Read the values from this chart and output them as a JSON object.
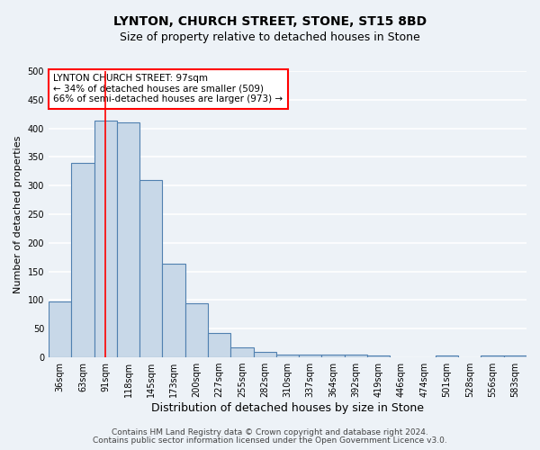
{
  "title": "LYNTON, CHURCH STREET, STONE, ST15 8BD",
  "subtitle": "Size of property relative to detached houses in Stone",
  "xlabel": "Distribution of detached houses by size in Stone",
  "ylabel": "Number of detached properties",
  "categories": [
    "36sqm",
    "63sqm",
    "91sqm",
    "118sqm",
    "145sqm",
    "173sqm",
    "200sqm",
    "227sqm",
    "255sqm",
    "282sqm",
    "310sqm",
    "337sqm",
    "364sqm",
    "392sqm",
    "419sqm",
    "446sqm",
    "474sqm",
    "501sqm",
    "528sqm",
    "556sqm",
    "583sqm"
  ],
  "values": [
    97,
    340,
    413,
    410,
    310,
    163,
    95,
    42,
    18,
    10,
    5,
    5,
    5,
    5,
    3,
    0,
    0,
    4,
    0,
    4,
    4
  ],
  "bar_color": "#c8d8e8",
  "bar_edge_color": "#5080b0",
  "red_line_index": 2,
  "annotation_text": "LYNTON CHURCH STREET: 97sqm\n← 34% of detached houses are smaller (509)\n66% of semi-detached houses are larger (973) →",
  "annotation_box_color": "white",
  "annotation_box_edge_color": "red",
  "ylim": [
    0,
    500
  ],
  "yticks": [
    0,
    50,
    100,
    150,
    200,
    250,
    300,
    350,
    400,
    450,
    500
  ],
  "background_color": "#edf2f7",
  "grid_color": "white",
  "footer_line1": "Contains HM Land Registry data © Crown copyright and database right 2024.",
  "footer_line2": "Contains public sector information licensed under the Open Government Licence v3.0.",
  "title_fontsize": 10,
  "subtitle_fontsize": 9,
  "xlabel_fontsize": 9,
  "ylabel_fontsize": 8,
  "tick_fontsize": 7,
  "annotation_fontsize": 7.5,
  "footer_fontsize": 6.5
}
